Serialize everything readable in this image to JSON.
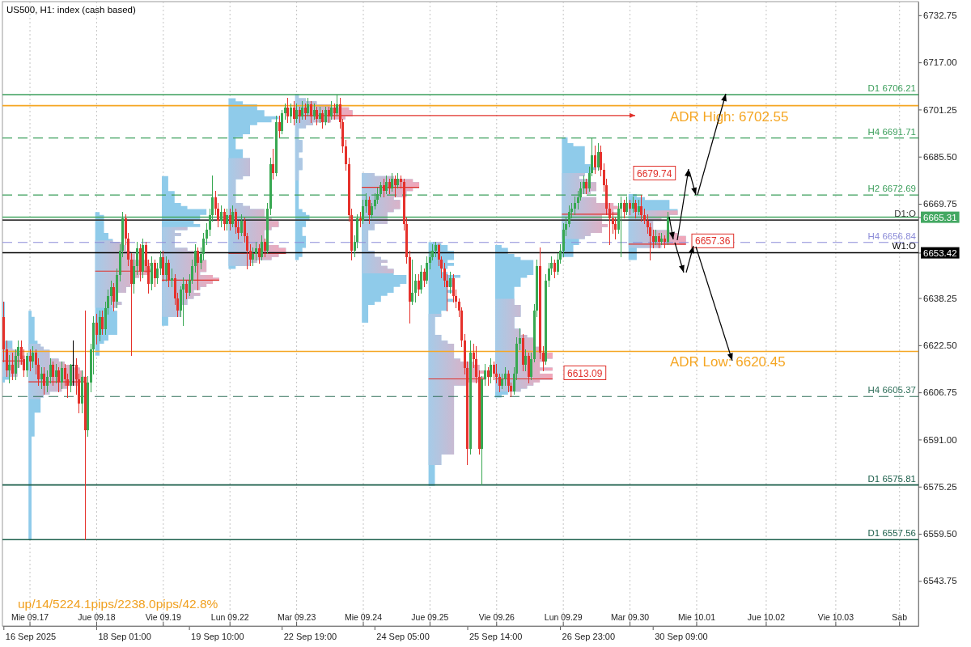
{
  "chart_data": {
    "type": "candlestick",
    "title": "US500, H1: index (cash based)",
    "categories": [
      null,
      null,
      null,
      null,
      null,
      null,
      null,
      null,
      null,
      "Mie 09.17",
      null,
      null,
      null,
      null,
      null,
      null,
      null,
      null,
      null,
      null,
      null,
      null,
      null,
      null,
      null,
      null,
      null,
      null,
      null,
      null,
      null,
      null,
      "Jue 09.18",
      null,
      null,
      null,
      null,
      null,
      null,
      null,
      null,
      null,
      null,
      null,
      null,
      null,
      null,
      null,
      null,
      null,
      null,
      null,
      null,
      null,
      null,
      "Vie 09.19",
      null,
      null,
      null,
      null,
      null,
      null,
      null,
      null,
      null,
      null,
      null,
      null,
      null,
      null,
      null,
      null,
      null,
      null,
      null,
      null,
      null,
      null,
      "Lun 09.22",
      null,
      null,
      null,
      null,
      null,
      null,
      null,
      null,
      null,
      null,
      null,
      null,
      null,
      null,
      null,
      null,
      null,
      null,
      null,
      null,
      null,
      null,
      "Mar 09.23",
      null,
      null,
      null,
      null,
      null,
      null,
      null,
      null,
      null,
      null,
      null,
      null,
      null,
      null,
      null,
      null,
      null,
      null,
      null,
      null,
      null,
      null,
      "Mie 09.24",
      null,
      null,
      null,
      null,
      null,
      null,
      null,
      null,
      null,
      null,
      null,
      null,
      null,
      null,
      null,
      null,
      null,
      null,
      null,
      null,
      null,
      null,
      "Jue 09.25",
      null,
      null,
      null,
      null,
      null,
      null,
      null,
      null,
      null,
      null,
      null,
      null,
      null,
      null,
      null,
      null,
      null,
      null,
      null,
      null,
      null,
      null,
      "Vie 09.26",
      null,
      null,
      null,
      null,
      null,
      null,
      null,
      null,
      null,
      null,
      null,
      null,
      null,
      null,
      null,
      null,
      null,
      null,
      null,
      null,
      null,
      null,
      "Lun 09.29",
      null,
      null,
      null,
      null,
      null,
      null,
      null,
      null,
      null,
      null,
      null,
      null,
      null,
      null,
      null,
      null,
      null,
      null,
      null,
      null,
      null,
      null,
      "Mar 09.30",
      null,
      null,
      null,
      null,
      null,
      null,
      null,
      null,
      null,
      null,
      null,
      null,
      null,
      null,
      null,
      null,
      null,
      null,
      null,
      null,
      null,
      null,
      "Mie 10.01",
      null,
      null,
      null,
      null,
      null,
      null,
      null,
      null,
      null,
      null,
      null,
      null,
      null,
      null,
      null,
      null,
      null,
      null,
      null,
      null,
      null,
      null,
      null,
      "Jue 10.02",
      null,
      null,
      null,
      null,
      null,
      null,
      null,
      null,
      null,
      null,
      null,
      null,
      null,
      null,
      null,
      null,
      null,
      null,
      null,
      null,
      null,
      null,
      null,
      "Vie 10.03",
      null,
      null,
      null,
      null,
      null,
      null,
      null,
      null,
      null,
      null,
      null,
      null,
      null,
      null,
      null,
      null,
      null,
      null,
      null,
      null,
      null,
      "Sab",
      null,
      null,
      null,
      null,
      null,
      null
    ],
    "ohlc": [
      [
        6632,
        6637,
        6617,
        6621
      ],
      [
        6621,
        6624,
        6612,
        6614
      ],
      [
        6614,
        6619,
        6610,
        6616
      ],
      [
        6616,
        6620,
        6611,
        6613
      ],
      [
        6613,
        6621,
        6611,
        6619
      ],
      [
        6619,
        6624,
        6615,
        6622
      ],
      [
        6622,
        6624,
        6616,
        6618
      ],
      [
        6618,
        6621,
        6612,
        6614
      ],
      [
        6614,
        6620,
        6612,
        6619
      ],
      [
        6619,
        6621,
        6614,
        6617
      ],
      [
        6617,
        6622,
        6615,
        6620
      ],
      [
        6620,
        6621,
        6613,
        6616
      ],
      [
        6616,
        6618,
        6609,
        6611
      ],
      [
        6611,
        6615,
        6608,
        6613
      ],
      [
        6613,
        6615,
        6606,
        6609
      ],
      [
        6609,
        6614,
        6607,
        6612
      ],
      [
        6612,
        6618,
        6610,
        6616
      ],
      [
        6616,
        6617,
        6609,
        6612
      ],
      [
        6612,
        6616,
        6610,
        6614
      ],
      [
        6614,
        6615,
        6607,
        6610
      ],
      [
        6610,
        6617,
        6608,
        6615
      ],
      [
        6615,
        6616,
        6609,
        6611
      ],
      [
        6611,
        6613,
        6605,
        6609
      ],
      [
        6609,
        6616,
        6607,
        6616
      ],
      [
        6616,
        6624,
        6609,
        6616
      ],
      [
        6616,
        6618,
        6606,
        6611
      ],
      [
        6611,
        6613,
        6600,
        6603
      ],
      [
        6603,
        6614,
        6600,
        6612
      ],
      [
        6612,
        6634,
        6557.56,
        6594
      ],
      [
        6594,
        6612,
        6592,
        6610
      ],
      [
        6610,
        6623,
        6607,
        6621
      ],
      [
        6621,
        6632,
        6613,
        6630
      ],
      [
        6630,
        6633,
        6623,
        6626
      ],
      [
        6626,
        6634,
        6624,
        6632
      ],
      [
        6632,
        6634,
        6626,
        6628
      ],
      [
        6628,
        6637,
        6626,
        6635
      ],
      [
        6635,
        6641,
        6633,
        6639
      ],
      [
        6639,
        6644,
        6636,
        6642
      ],
      [
        6642,
        6643,
        6634,
        6637
      ],
      [
        6637,
        6648,
        6635,
        6646
      ],
      [
        6646,
        6656,
        6644,
        6654
      ],
      [
        6654,
        6667,
        6652,
        6665
      ],
      [
        6665,
        6666,
        6656,
        6658
      ],
      [
        6658,
        6660,
        6649,
        6651
      ],
      [
        6651,
        6653,
        6619,
        6643
      ],
      [
        6643,
        6651,
        6640,
        6649
      ],
      [
        6649,
        6657,
        6646,
        6655
      ],
      [
        6655,
        6656,
        6644,
        6647
      ],
      [
        6647,
        6658,
        6645,
        6656
      ],
      [
        6656,
        6657,
        6647,
        6649
      ],
      [
        6649,
        6651,
        6640,
        6643
      ],
      [
        6643,
        6652,
        6641,
        6650
      ],
      [
        6650,
        6651,
        6642,
        6645
      ],
      [
        6645,
        6650,
        6643,
        6648
      ],
      [
        6648,
        6654,
        6646,
        6652
      ],
      [
        6652,
        6654,
        6644,
        6646
      ],
      [
        6646,
        6652,
        6644,
        6650
      ],
      [
        6650,
        6651,
        6642,
        6644
      ],
      [
        6644,
        6648,
        6642,
        6645
      ],
      [
        6645,
        6646,
        6636,
        6638
      ],
      [
        6638,
        6640,
        6632,
        6634
      ],
      [
        6634,
        6642,
        6632,
        6641
      ],
      [
        6641,
        6645,
        6629,
        6643
      ],
      [
        6643,
        6644,
        6638,
        6640
      ],
      [
        6640,
        6646,
        6639,
        6644
      ],
      [
        6644,
        6651,
        6643,
        6649
      ],
      [
        6649,
        6656,
        6647,
        6654
      ],
      [
        6654,
        6655,
        6641,
        6650
      ],
      [
        6650,
        6655,
        6648,
        6653
      ],
      [
        6653,
        6660,
        6651,
        6658
      ],
      [
        6658,
        6663,
        6656,
        6661
      ],
      [
        6661,
        6668,
        6659,
        6666
      ],
      [
        6666,
        6679,
        6664,
        6672
      ],
      [
        6672,
        6674,
        6666,
        6668
      ],
      [
        6668,
        6670,
        6662,
        6664
      ],
      [
        6664,
        6669,
        6662,
        6667
      ],
      [
        6667,
        6668,
        6661,
        6663
      ],
      [
        6663,
        6668,
        6661,
        6666
      ],
      [
        6666,
        6668,
        6661,
        6663
      ],
      [
        6663,
        6669,
        6662,
        6667
      ],
      [
        6667,
        6668,
        6660,
        6662
      ],
      [
        6662,
        6664,
        6658,
        6660
      ],
      [
        6660,
        6666,
        6659,
        6664
      ],
      [
        6664,
        6665,
        6657,
        6659
      ],
      [
        6659,
        6660,
        6648,
        6654
      ],
      [
        6654,
        6656,
        6649,
        6651
      ],
      [
        6651,
        6655,
        6649,
        6653
      ],
      [
        6653,
        6657,
        6651,
        6655
      ],
      [
        6655,
        6656,
        6650,
        6652
      ],
      [
        6652,
        6659,
        6651,
        6657
      ],
      [
        6657,
        6658,
        6652,
        6654
      ],
      [
        6654,
        6670,
        6653,
        6668
      ],
      [
        6668,
        6685,
        6666,
        6683
      ],
      [
        6683,
        6688,
        6678,
        6680
      ],
      [
        6680,
        6699,
        6679,
        6697
      ],
      [
        6697,
        6699,
        6692,
        6694
      ],
      [
        6694,
        6701,
        6693,
        6700
      ],
      [
        6700,
        6703,
        6698,
        6702
      ],
      [
        6702,
        6705,
        6697,
        6699
      ],
      [
        6699,
        6703,
        6697,
        6702
      ],
      [
        6702,
        6704,
        6696,
        6698
      ],
      [
        6698,
        6703,
        6697,
        6701
      ],
      [
        6701,
        6702,
        6697,
        6699
      ],
      [
        6699,
        6704,
        6698,
        6702
      ],
      [
        6702,
        6703,
        6698,
        6700
      ],
      [
        6700,
        6705,
        6699,
        6703
      ],
      [
        6703,
        6704,
        6697,
        6699
      ],
      [
        6699,
        6703,
        6698,
        6701
      ],
      [
        6701,
        6702,
        6696,
        6698
      ],
      [
        6698,
        6702,
        6697,
        6700
      ],
      [
        6700,
        6701,
        6695,
        6697
      ],
      [
        6697,
        6702,
        6696,
        6701
      ],
      [
        6701,
        6702,
        6697,
        6699
      ],
      [
        6699,
        6704,
        6698,
        6702
      ],
      [
        6702,
        6703,
        6698,
        6700
      ],
      [
        6700,
        6706.21,
        6699,
        6703
      ],
      [
        6703,
        6705,
        6695,
        6697
      ],
      [
        6697,
        6698,
        6687,
        6689
      ],
      [
        6689,
        6691,
        6681,
        6683
      ],
      [
        6683,
        6685,
        6664,
        6666
      ],
      [
        6666,
        6668,
        6651,
        6654
      ],
      [
        6654,
        6659,
        6652,
        6657
      ],
      [
        6657,
        6666,
        6655,
        6665
      ],
      [
        6665,
        6667,
        6662,
        6664
      ],
      [
        6664,
        6671,
        6663,
        6669
      ],
      [
        6669,
        6673,
        6667,
        6671
      ],
      [
        6671,
        6672,
        6663,
        6666
      ],
      [
        6666,
        6670,
        6665,
        6669
      ],
      [
        6669,
        6673,
        6668,
        6671
      ],
      [
        6671,
        6675,
        6670,
        6673
      ],
      [
        6673,
        6677,
        6672,
        6676
      ],
      [
        6676,
        6678,
        6672,
        6674
      ],
      [
        6674,
        6679,
        6673,
        6677
      ],
      [
        6677,
        6678,
        6673,
        6675
      ],
      [
        6675,
        6680,
        6674,
        6678
      ],
      [
        6678,
        6679,
        6672,
        6676
      ],
      [
        6676,
        6680,
        6675,
        6678
      ],
      [
        6678,
        6679,
        6675,
        6677
      ],
      [
        6677,
        6678,
        6661,
        6663
      ],
      [
        6663,
        6665,
        6650,
        6652
      ],
      [
        6652,
        6654,
        6630,
        6637
      ],
      [
        6637,
        6651,
        6636,
        6640
      ],
      [
        6640,
        6646,
        6637,
        6644
      ],
      [
        6644,
        6646,
        6639,
        6641
      ],
      [
        6641,
        6649,
        6640,
        6647
      ],
      [
        6647,
        6648,
        6642,
        6644
      ],
      [
        6644,
        6652,
        6643,
        6650
      ],
      [
        6650,
        6654,
        6648,
        6652
      ],
      [
        6652,
        6656,
        6651,
        6654
      ],
      [
        6654,
        6656.84,
        6652,
        6656
      ],
      [
        6656,
        6656.5,
        6649,
        6651
      ],
      [
        6651,
        6652,
        6645,
        6648
      ],
      [
        6648,
        6650,
        6642,
        6644
      ],
      [
        6644,
        6646,
        6634,
        6642
      ],
      [
        6642,
        6647,
        6640,
        6645
      ],
      [
        6645,
        6646,
        6637,
        6639
      ],
      [
        6639,
        6641,
        6635,
        6637
      ],
      [
        6637,
        6638,
        6632,
        6634
      ],
      [
        6634,
        6635,
        6622,
        6624
      ],
      [
        6624,
        6626,
        6613,
        6615
      ],
      [
        6615,
        6617,
        6582.5,
        6588
      ],
      [
        6588,
        6624,
        6586,
        6620
      ],
      [
        6620,
        6623,
        6615,
        6618
      ],
      [
        6618,
        6622,
        6610,
        6612
      ],
      [
        6612,
        6614,
        6586,
        6588
      ],
      [
        6588,
        6612,
        6575.81,
        6611
      ],
      [
        6611,
        6616,
        6609,
        6614
      ],
      [
        6614,
        6615,
        6609,
        6612
      ],
      [
        6612,
        6618,
        6610,
        6616
      ],
      [
        6616,
        6617,
        6611,
        6613
      ],
      [
        6613,
        6616,
        6610,
        6612
      ],
      [
        6612,
        6613,
        6607,
        6609
      ],
      [
        6609,
        6613,
        6608,
        6611
      ],
      [
        6611,
        6615,
        6609,
        6613
      ],
      [
        6613,
        6614,
        6607,
        6609
      ],
      [
        6609,
        6610,
        6605.37,
        6607
      ],
      [
        6607,
        6615,
        6606,
        6613
      ],
      [
        6613,
        6625,
        6611,
        6623
      ],
      [
        6623,
        6628,
        6621,
        6625
      ],
      [
        6625,
        6626,
        6614,
        6616
      ],
      [
        6616,
        6621,
        6614,
        6619
      ],
      [
        6619,
        6620,
        6610,
        6612
      ],
      [
        6612,
        6620,
        6611,
        6618
      ],
      [
        6618,
        6636,
        6617,
        6634
      ],
      [
        6634,
        6651,
        6632,
        6649
      ],
      [
        6649,
        6655,
        6618,
        6620
      ],
      [
        6620,
        6622,
        6614,
        6617
      ],
      [
        6617,
        6646,
        6616,
        6644
      ],
      [
        6644,
        6650,
        6642,
        6648
      ],
      [
        6648,
        6652,
        6646,
        6650
      ],
      [
        6650,
        6651,
        6645,
        6647
      ],
      [
        6647,
        6653,
        6646,
        6651
      ],
      [
        6651,
        6656,
        6650,
        6654
      ],
      [
        6654,
        6663,
        6652,
        6661
      ],
      [
        6661,
        6665,
        6659,
        6663
      ],
      [
        6663,
        6669,
        6662,
        6667
      ],
      [
        6667,
        6670,
        6665,
        6668
      ],
      [
        6668,
        6672,
        6666,
        6670
      ],
      [
        6670,
        6674,
        6668,
        6672
      ],
      [
        6672,
        6677,
        6671,
        6675
      ],
      [
        6675,
        6679,
        6673,
        6677
      ],
      [
        6677,
        6678,
        6673,
        6675
      ],
      [
        6675,
        6682,
        6674,
        6680
      ],
      [
        6680,
        6691.71,
        6679,
        6686
      ],
      [
        6686,
        6689,
        6680,
        6682
      ],
      [
        6682,
        6690,
        6681,
        6687
      ],
      [
        6687,
        6689,
        6679,
        6681
      ],
      [
        6681,
        6683,
        6674,
        6676
      ],
      [
        6676,
        6678,
        6666,
        6668
      ],
      [
        6668,
        6670,
        6656,
        6665
      ],
      [
        6665,
        6667,
        6660,
        6663
      ],
      [
        6663,
        6665,
        6658,
        6661
      ],
      [
        6661,
        6670,
        6660,
        6668
      ],
      [
        6668,
        6672,
        6652,
        6670
      ],
      [
        6670,
        6671,
        6665,
        6667
      ],
      [
        6667,
        6672,
        6666,
        6670
      ],
      [
        6670,
        6671,
        6666,
        6668
      ],
      [
        6668,
        6672,
        6667,
        6670
      ],
      [
        6670,
        6671,
        6665,
        6667
      ],
      [
        6667,
        6671,
        6666,
        6669
      ],
      [
        6669,
        6672.69,
        6664,
        6666
      ],
      [
        6666,
        6668,
        6663,
        6664
      ],
      [
        6664,
        6666,
        6660,
        6662
      ],
      [
        6662,
        6663,
        6651,
        6659
      ],
      [
        6659,
        6661,
        6655,
        6657
      ],
      [
        6657,
        6661,
        6656,
        6659
      ],
      [
        6659,
        6660,
        6655,
        6657
      ],
      [
        6657,
        6660,
        6656,
        6658
      ],
      [
        6658,
        6659,
        6655,
        6657
      ],
      [
        6657,
        6667,
        6656,
        6665.31
      ],
      null,
      null,
      null,
      null,
      null,
      null,
      null,
      null,
      null,
      null,
      null,
      null,
      null,
      null,
      null,
      null,
      null,
      null,
      null,
      null,
      null,
      null,
      null,
      null,
      null,
      null,
      null,
      null,
      null,
      null,
      null,
      null,
      null,
      null,
      null,
      null,
      null,
      null,
      null,
      null,
      null,
      null,
      null,
      null,
      null,
      null,
      null,
      null,
      null,
      null,
      null,
      null,
      null,
      null,
      null,
      null,
      null,
      null,
      null,
      null,
      null,
      null,
      null,
      null,
      null,
      null,
      null,
      null,
      null,
      null,
      null,
      null,
      null,
      null,
      null,
      null,
      null,
      null,
      null,
      null,
      null,
      null,
      null,
      null,
      null,
      null
    ],
    "ylim": [
      6528.7,
      6737.3
    ],
    "yticks": [
      6543.75,
      {
        "value": 6559.5,
        "label": "6559.50"
      },
      6575.25,
      {
        "value": 6591,
        "label": "6591.00"
      },
      6606.75,
      {
        "value": 6622.5,
        "label": "6622.50"
      },
      6638.25,
      6653.42,
      6665.31,
      6669.75,
      {
        "value": 6685.5,
        "label": "6685.50"
      },
      6701.25,
      {
        "value": 6717,
        "label": "6717.00"
      },
      6732.75
    ],
    "grid": "x",
    "ref_lines": [
      {
        "axis": "y",
        "value": 6706.21,
        "label": "D1 6706.21",
        "color": "#3c9f5c",
        "line_style": "solid"
      },
      {
        "axis": "y",
        "value": 6702.55,
        "color": "#f5a623",
        "line_style": "solid"
      },
      {
        "axis": "y",
        "value": 6691.71,
        "label": "H4 6691.71",
        "color": "#3c9f5c",
        "line_style": "dashed"
      },
      {
        "axis": "y",
        "value": 6672.69,
        "label": "H2 6672.69",
        "color": "#3c9f5c",
        "line_style": "dashed"
      },
      {
        "axis": "y",
        "value": 6665.31,
        "color": "#43a862",
        "line_style": "solid"
      },
      {
        "axis": "y",
        "value": 6664.3,
        "label": "D1:O",
        "color": "#3a3a3a",
        "line_style": "solid"
      },
      {
        "axis": "y",
        "value": 6656.84,
        "label": "H4 6656.84",
        "color": "#8c8cd8",
        "line_style": "dashed"
      },
      {
        "axis": "y",
        "value": 6653.42,
        "label": "W1:O",
        "color": "#000000",
        "line_style": "solid"
      },
      {
        "axis": "y",
        "value": 6620.45,
        "color": "#f5a623",
        "line_style": "solid"
      },
      {
        "axis": "y",
        "value": 6605.37,
        "label": "H4 6605.37",
        "color": "#2f6f5a",
        "line_style": "dashed"
      },
      {
        "axis": "y",
        "value": 6575.81,
        "label": "D1 6575.81",
        "color": "#1b5e4a",
        "line_style": "solid"
      },
      {
        "axis": "y",
        "value": 6557.56,
        "label": "D1 6557.56",
        "color": "#1b5e4a",
        "line_style": "solid"
      }
    ],
    "annotations": [
      {
        "text": "ADR High: 6702.55",
        "y": 6702.55
      },
      {
        "text": "ADR Low: 6620.45",
        "y": 6620.45
      },
      "6679.74",
      {
        "text": "6657.36",
        "y": 6657.36
      },
      "6613.09",
      "up/14/5224.1pips/2238.0pips/42.8%",
      "16 Sep 2025",
      "18 Sep 01:00",
      "19 Sep 10:00",
      "22 Sep 19:00",
      "24 Sep 05:00",
      "25 Sep 14:00",
      "26 Sep 23:00",
      "30 Sep 09:00"
    ]
  }
}
